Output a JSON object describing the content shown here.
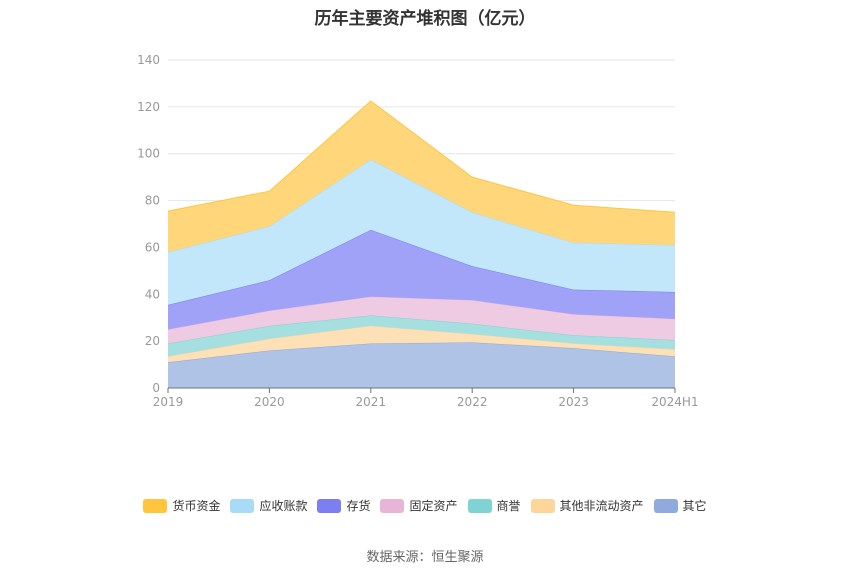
{
  "chart_data": {
    "type": "area",
    "stacked": true,
    "title": "历年主要资产堆积图（亿元）",
    "categories": [
      "2019",
      "2020",
      "2021",
      "2022",
      "2023",
      "2024H1"
    ],
    "ylim": [
      0,
      140
    ],
    "yticks": [
      0,
      20,
      40,
      60,
      80,
      100,
      120,
      140
    ],
    "grid": true,
    "legend_position": "bottom",
    "series": [
      {
        "name": "其它",
        "color": "#8faadc",
        "fill": "#aec3e5",
        "values": [
          11,
          16,
          19,
          19.5,
          17,
          13.5
        ]
      },
      {
        "name": "其他非流动资产",
        "color": "#ffd699",
        "fill": "#fde0b5",
        "values": [
          2.5,
          5,
          7.5,
          3.5,
          2,
          3
        ]
      },
      {
        "name": "商誉",
        "color": "#7fd3d3",
        "fill": "#a6dfe0",
        "values": [
          5.5,
          5.5,
          4.5,
          4.5,
          3.5,
          4
        ]
      },
      {
        "name": "固定资产",
        "color": "#e8b4d8",
        "fill": "#efcbe3",
        "values": [
          6,
          6.5,
          8,
          10,
          9,
          9
        ]
      },
      {
        "name": "存货",
        "color": "#7b7ff2",
        "fill": "#9fa2f6",
        "values": [
          10.5,
          13,
          28.5,
          14.5,
          10.5,
          11.5
        ]
      },
      {
        "name": "应收账款",
        "color": "#a8dcf6",
        "fill": "#c3e7fa",
        "values": [
          22.5,
          23,
          30,
          23,
          20,
          20
        ]
      },
      {
        "name": "货币资金",
        "color": "#ffc53d",
        "fill": "#ffd67a",
        "values": [
          17.5,
          15,
          25,
          15,
          16,
          14
        ]
      }
    ]
  },
  "legend_order": [
    "货币资金",
    "应收账款",
    "存货",
    "固定资产",
    "商誉",
    "其他非流动资产",
    "其它"
  ],
  "source": "数据来源：恒生聚源"
}
